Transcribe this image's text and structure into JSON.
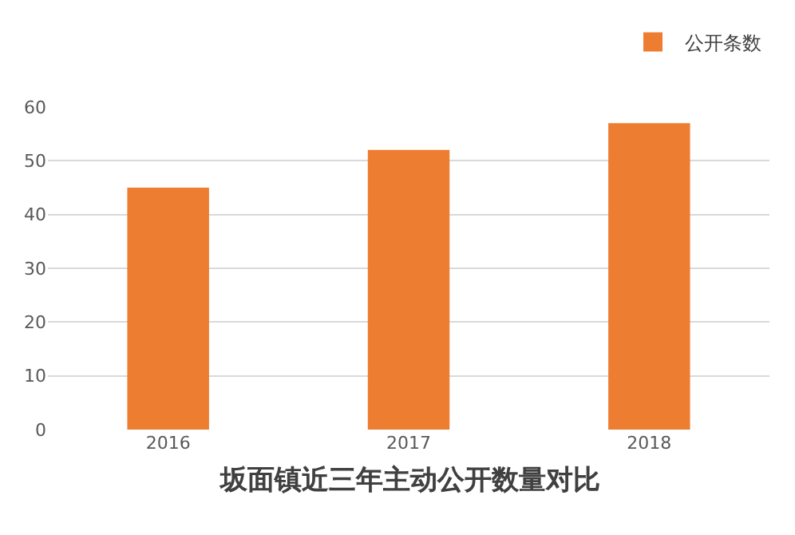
{
  "chart_data": {
    "type": "bar",
    "title": "坂面镇近三年主动公开数量对比",
    "categories": [
      "2016",
      "2017",
      "2018"
    ],
    "series": [
      {
        "name": "公开条数",
        "color": "#ed7d31",
        "values": [
          45,
          52,
          57
        ]
      }
    ],
    "ylim": [
      0,
      60
    ],
    "yticks": [
      0,
      10,
      20,
      30,
      40,
      50,
      60
    ],
    "grid": "y",
    "legend": "top right"
  }
}
